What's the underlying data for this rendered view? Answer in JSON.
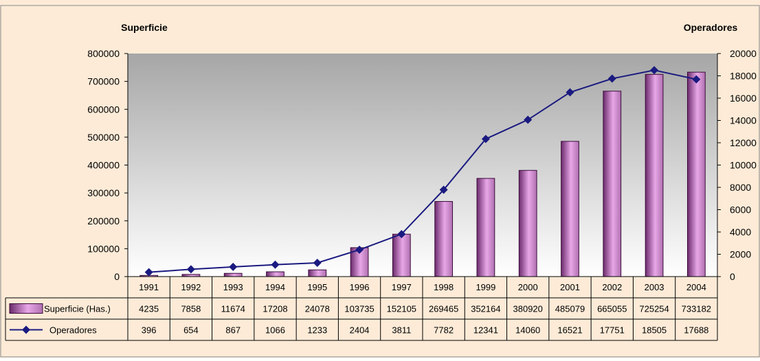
{
  "chart_data": {
    "type": "bar",
    "title": "",
    "left_axis_title": "Superficie",
    "right_axis_title": "Operadores",
    "categories": [
      "1991",
      "1992",
      "1993",
      "1994",
      "1995",
      "1996",
      "1997",
      "1998",
      "1999",
      "2000",
      "2001",
      "2002",
      "2003",
      "2004"
    ],
    "series": [
      {
        "name": "Superficie (Has.)",
        "type": "bar",
        "axis": "left",
        "values": [
          4235,
          7858,
          11674,
          17208,
          24078,
          103735,
          152105,
          269465,
          352164,
          380920,
          485079,
          665055,
          725254,
          733182
        ],
        "color": "#c080c0"
      },
      {
        "name": "Operadores",
        "type": "line",
        "axis": "right",
        "values": [
          396,
          654,
          867,
          1066,
          1233,
          2404,
          3811,
          7782,
          12341,
          14060,
          16521,
          17751,
          18505,
          17688
        ],
        "color": "#1a1a80"
      }
    ],
    "left_axis": {
      "ylim": [
        0,
        800000
      ],
      "ticks": [
        "0",
        "100000",
        "200000",
        "300000",
        "400000",
        "500000",
        "600000",
        "700000",
        "800000"
      ]
    },
    "right_axis": {
      "ylim": [
        0,
        20000
      ],
      "ticks": [
        "0",
        "2000",
        "4000",
        "6000",
        "8000",
        "10000",
        "12000",
        "14000",
        "16000",
        "18000",
        "20000"
      ]
    },
    "data_table": true,
    "legend": "data-table"
  },
  "colors": {
    "page_background": "#fdebd7",
    "plot_gradient_top": "#a6a6a6",
    "plot_gradient_bottom": "#ffffff",
    "line": "#1a1a80",
    "bar_dark": "#6b2a6b",
    "bar_light": "#e8a8e8"
  }
}
